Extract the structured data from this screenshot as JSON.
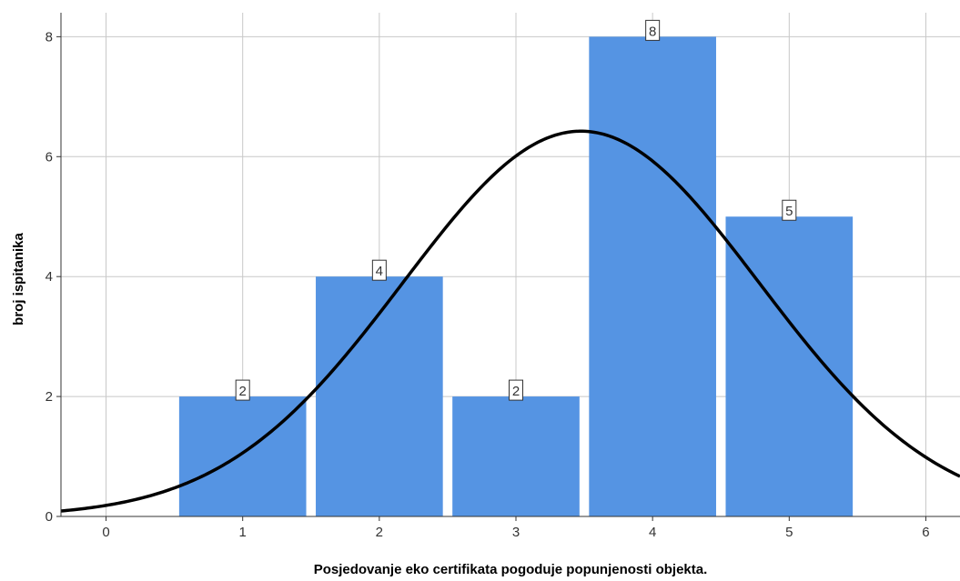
{
  "chart_data": {
    "type": "bar",
    "categories": [
      "1",
      "2",
      "3",
      "4",
      "5"
    ],
    "x": [
      1,
      2,
      3,
      4,
      5
    ],
    "values": [
      2,
      4,
      2,
      8,
      5
    ],
    "data_labels": [
      "2",
      "4",
      "2",
      "8",
      "5"
    ],
    "title": "",
    "xlabel": "Posjedovanje eko certifikata pogoduje popunjenosti objekta.",
    "ylabel": "broj ispitanika",
    "xlim": [
      -0.33,
      6.25
    ],
    "ylim": [
      0,
      8.4
    ],
    "x_ticks": [
      "0",
      "1",
      "2",
      "3",
      "4",
      "5",
      "6"
    ],
    "y_ticks": [
      "0",
      "2",
      "4",
      "6",
      "8"
    ],
    "grid": true,
    "bar_color": "#5594E3",
    "normal_curve": {
      "mean": 3.476,
      "sd": 1.304,
      "n": 21,
      "bin_width": 1,
      "color": "#000000"
    }
  }
}
